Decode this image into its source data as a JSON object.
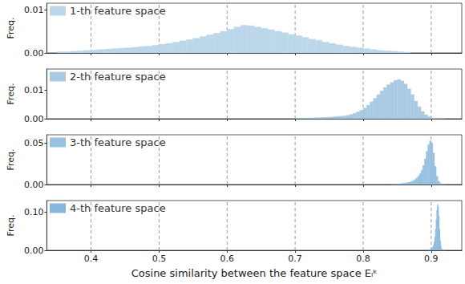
{
  "chart_data": [
    {
      "type": "histogram",
      "ylabel": "Freq.",
      "grid": true,
      "legend": "upper left",
      "tick_labels": "y",
      "xlim": [
        0.335,
        0.945
      ],
      "xticks": [
        0.4,
        0.5,
        0.6,
        0.7,
        0.8,
        0.9
      ],
      "ylim": [
        0,
        0.0115
      ],
      "yticks": [
        {
          "value": 0,
          "label": "0.00"
        },
        {
          "value": 0.01,
          "label": "0.01"
        }
      ],
      "bins": [
        0.35,
        0.36,
        0.37,
        0.38,
        0.39,
        0.4,
        0.41,
        0.42,
        0.43,
        0.44,
        0.45,
        0.46,
        0.47,
        0.48,
        0.49,
        0.5,
        0.51,
        0.52,
        0.53,
        0.54,
        0.55,
        0.56,
        0.57,
        0.58,
        0.59,
        0.6,
        0.61,
        0.62,
        0.63,
        0.64,
        0.65,
        0.66,
        0.67,
        0.68,
        0.69,
        0.7,
        0.71,
        0.72,
        0.73,
        0.74,
        0.75,
        0.76,
        0.77,
        0.78,
        0.79,
        0.8,
        0.81,
        0.82,
        0.83,
        0.84,
        0.85,
        0.86,
        0.87
      ],
      "series": [
        {
          "name": "1-th feature space",
          "color": "#bcd6ea",
          "values": [
            0.0003,
            0.0003,
            0.0004,
            0.0005,
            0.0006,
            0.0007,
            0.0008,
            0.0009,
            0.001,
            0.0011,
            0.0012,
            0.0013,
            0.0015,
            0.0016,
            0.0018,
            0.002,
            0.0022,
            0.0025,
            0.0028,
            0.0031,
            0.0034,
            0.0038,
            0.0042,
            0.0046,
            0.005,
            0.0055,
            0.006,
            0.0064,
            0.0063,
            0.006,
            0.0057,
            0.0054,
            0.005,
            0.0047,
            0.0043,
            0.004,
            0.0036,
            0.0032,
            0.0029,
            0.0025,
            0.0022,
            0.0019,
            0.0016,
            0.0014,
            0.0012,
            0.001,
            0.0008,
            0.0006,
            0.0005,
            0.0004,
            0.0003,
            0.0002
          ]
        }
      ]
    },
    {
      "type": "histogram",
      "ylabel": "Freq.",
      "grid": true,
      "legend": "upper left",
      "tick_labels": "y",
      "xlim": [
        0.335,
        0.945
      ],
      "xticks": [
        0.4,
        0.5,
        0.6,
        0.7,
        0.8,
        0.9
      ],
      "ylim": [
        0,
        0.0175
      ],
      "yticks": [
        {
          "value": 0,
          "label": "0.00"
        },
        {
          "value": 0.01,
          "label": "0.01"
        }
      ],
      "bins": [
        0.7,
        0.705,
        0.71,
        0.715,
        0.72,
        0.725,
        0.73,
        0.735,
        0.74,
        0.745,
        0.75,
        0.755,
        0.76,
        0.765,
        0.77,
        0.775,
        0.78,
        0.785,
        0.79,
        0.795,
        0.8,
        0.805,
        0.81,
        0.815,
        0.82,
        0.825,
        0.83,
        0.835,
        0.84,
        0.845,
        0.85,
        0.855,
        0.86,
        0.865,
        0.87,
        0.875,
        0.88,
        0.885,
        0.89,
        0.895,
        0.9,
        0.905,
        0.91,
        0.915,
        0.92
      ],
      "series": [
        {
          "name": "2-th feature space",
          "color": "#a8cae4",
          "values": [
            0.0002,
            0.0002,
            0.0002,
            0.0003,
            0.0003,
            0.0003,
            0.0004,
            0.0004,
            0.0005,
            0.0005,
            0.0006,
            0.0007,
            0.0008,
            0.0009,
            0.001,
            0.0012,
            0.0015,
            0.0019,
            0.0024,
            0.003,
            0.0038,
            0.0048,
            0.006,
            0.0072,
            0.0085,
            0.0098,
            0.011,
            0.012,
            0.0128,
            0.0135,
            0.0138,
            0.0133,
            0.0122,
            0.0105,
            0.0085,
            0.0062,
            0.0042,
            0.0026,
            0.0014,
            0.0007,
            0.0003,
            0.0002,
            0.0001,
            0.0001
          ]
        }
      ]
    },
    {
      "type": "histogram",
      "ylabel": "Freq.",
      "grid": true,
      "legend": "upper left",
      "tick_labels": "y",
      "xlim": [
        0.335,
        0.945
      ],
      "xticks": [
        0.4,
        0.5,
        0.6,
        0.7,
        0.8,
        0.9
      ],
      "ylim": [
        0,
        0.06
      ],
      "yticks": [
        {
          "value": 0,
          "label": "0.00"
        },
        {
          "value": 0.05,
          "label": "0.05"
        }
      ],
      "bins": [
        0.84,
        0.8425,
        0.845,
        0.8475,
        0.85,
        0.8525,
        0.855,
        0.8575,
        0.86,
        0.8625,
        0.865,
        0.8675,
        0.87,
        0.8725,
        0.875,
        0.8775,
        0.88,
        0.8825,
        0.885,
        0.8875,
        0.89,
        0.8925,
        0.895,
        0.8975,
        0.9,
        0.9025,
        0.905,
        0.9075,
        0.91,
        0.9125,
        0.915,
        0.9175,
        0.92
      ],
      "series": [
        {
          "name": "3-th feature space",
          "color": "#98c0df",
          "values": [
            0.0005,
            0.0005,
            0.0006,
            0.0007,
            0.0008,
            0.001,
            0.0012,
            0.0014,
            0.0017,
            0.002,
            0.0025,
            0.003,
            0.0038,
            0.0048,
            0.006,
            0.0078,
            0.01,
            0.013,
            0.017,
            0.023,
            0.031,
            0.04,
            0.048,
            0.053,
            0.05,
            0.038,
            0.022,
            0.01,
            0.004,
            0.0015,
            0.0005,
            0.0002
          ]
        }
      ]
    },
    {
      "type": "histogram",
      "ylabel": "Freq.",
      "grid": true,
      "legend": "upper left",
      "xlabel": "Cosine similarity between the feature space Eₗᵏ",
      "xlim": [
        0.335,
        0.945
      ],
      "xticks": [
        0.4,
        0.5,
        0.6,
        0.7,
        0.8,
        0.9
      ],
      "ylim": [
        0,
        0.13
      ],
      "yticks": [
        {
          "value": 0,
          "label": "0.00"
        },
        {
          "value": 0.1,
          "label": "0.10"
        }
      ],
      "bins": [
        0.895,
        0.896,
        0.897,
        0.898,
        0.899,
        0.9,
        0.901,
        0.902,
        0.903,
        0.904,
        0.905,
        0.906,
        0.907,
        0.908,
        0.909,
        0.91,
        0.911,
        0.912,
        0.913,
        0.914,
        0.915,
        0.916,
        0.917,
        0.918,
        0.919,
        0.92
      ],
      "series": [
        {
          "name": "4-th feature space",
          "color": "#88b6da",
          "values": [
            0.0005,
            0.001,
            0.0015,
            0.002,
            0.003,
            0.004,
            0.006,
            0.009,
            0.014,
            0.022,
            0.035,
            0.055,
            0.08,
            0.105,
            0.12,
            0.115,
            0.09,
            0.055,
            0.025,
            0.01,
            0.004,
            0.0015,
            0.0005,
            0.0002,
            0.0001
          ]
        }
      ]
    }
  ]
}
